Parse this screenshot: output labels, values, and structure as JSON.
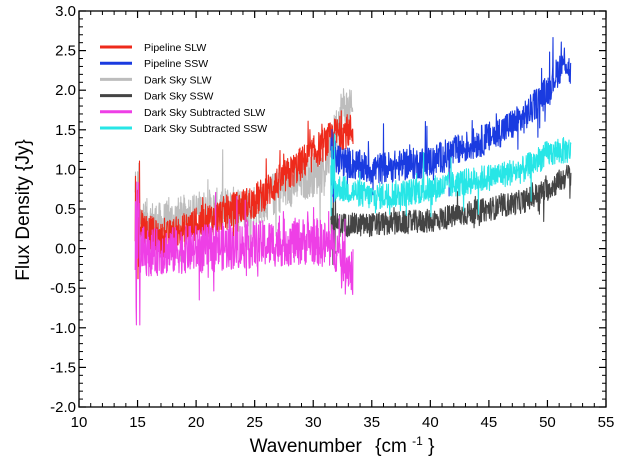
{
  "chart_data": {
    "type": "line",
    "title": "",
    "xlabel": "Wavenumber",
    "xlabel_unit_base": "{cm",
    "xlabel_unit_exp": "-1",
    "xlabel_unit_close": "}",
    "ylabel": "Flux Density  {Jy}",
    "xlim": [
      10,
      55
    ],
    "ylim": [
      -2.0,
      3.0
    ],
    "xticks": [
      10,
      15,
      20,
      25,
      30,
      35,
      40,
      45,
      50,
      55
    ],
    "yticks": [
      -2.0,
      -1.5,
      -1.0,
      -0.5,
      0.0,
      0.5,
      1.0,
      1.5,
      2.0,
      2.5,
      3.0
    ],
    "xtick_labels": [
      "10",
      "15",
      "20",
      "25",
      "30",
      "35",
      "40",
      "45",
      "50",
      "55"
    ],
    "ytick_labels": [
      "-2.0",
      "-1.5",
      "-1.0",
      "-0.5",
      "0.0",
      "0.5",
      "1.0",
      "1.5",
      "2.0",
      "2.5",
      "3.0"
    ],
    "legend_position": "top-left",
    "series": [
      {
        "name": "Pipeline SLW",
        "color": "#ee2a1b",
        "x_range": [
          14.8,
          33.4
        ],
        "anchors": [
          [
            14.8,
            0.35
          ],
          [
            17.0,
            0.1
          ],
          [
            20.0,
            0.3
          ],
          [
            25.0,
            0.6
          ],
          [
            28.0,
            0.95
          ],
          [
            30.0,
            1.2
          ],
          [
            32.0,
            1.45
          ],
          [
            33.4,
            1.5
          ]
        ],
        "noise": 0.22
      },
      {
        "name": "Pipeline SSW",
        "color": "#1a3be0",
        "x_range": [
          31.5,
          52.0
        ],
        "anchors": [
          [
            31.5,
            1.15
          ],
          [
            35.0,
            1.0
          ],
          [
            40.0,
            1.1
          ],
          [
            45.0,
            1.4
          ],
          [
            48.0,
            1.65
          ],
          [
            50.0,
            2.0
          ],
          [
            51.5,
            2.4
          ],
          [
            52.0,
            2.2
          ]
        ],
        "noise": 0.2
      },
      {
        "name": "Dark Sky SLW",
        "color": "#bdbdbd",
        "x_range": [
          14.8,
          33.4
        ],
        "anchors": [
          [
            14.8,
            0.4
          ],
          [
            17.0,
            0.3
          ],
          [
            20.0,
            0.45
          ],
          [
            25.0,
            0.55
          ],
          [
            28.0,
            0.8
          ],
          [
            31.0,
            1.0
          ],
          [
            32.5,
            1.8
          ],
          [
            33.4,
            1.7
          ]
        ],
        "noise": 0.28
      },
      {
        "name": "Dark Sky SSW",
        "color": "#444444",
        "x_range": [
          31.5,
          52.0
        ],
        "anchors": [
          [
            31.5,
            0.3
          ],
          [
            35.0,
            0.3
          ],
          [
            40.0,
            0.35
          ],
          [
            45.0,
            0.5
          ],
          [
            48.0,
            0.6
          ],
          [
            50.0,
            0.75
          ],
          [
            52.0,
            0.95
          ]
        ],
        "noise": 0.15
      },
      {
        "name": "Dark Sky Subtracted SLW",
        "color": "#ee3fe6",
        "x_range": [
          14.8,
          33.4
        ],
        "anchors": [
          [
            14.8,
            0.0
          ],
          [
            16.0,
            -0.05
          ],
          [
            20.0,
            0.0
          ],
          [
            25.0,
            0.05
          ],
          [
            30.0,
            0.1
          ],
          [
            32.0,
            0.0
          ],
          [
            33.4,
            -0.3
          ]
        ],
        "noise": 0.3
      },
      {
        "name": "Dark Sky Subtracted SSW",
        "color": "#27e6e6",
        "x_range": [
          31.5,
          52.0
        ],
        "anchors": [
          [
            31.5,
            0.8
          ],
          [
            35.0,
            0.65
          ],
          [
            40.0,
            0.75
          ],
          [
            45.0,
            0.9
          ],
          [
            48.0,
            1.0
          ],
          [
            50.0,
            1.2
          ],
          [
            52.0,
            1.25
          ]
        ],
        "noise": 0.17
      }
    ]
  }
}
